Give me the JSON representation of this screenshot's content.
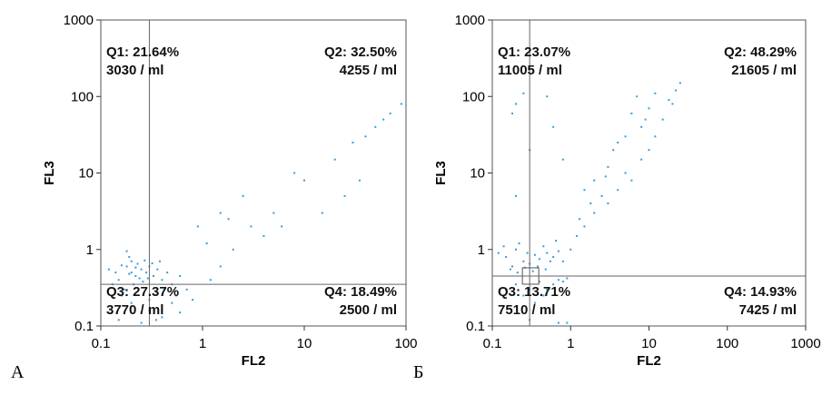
{
  "chart_data": [
    {
      "type": "scatter",
      "panel_label": "А",
      "xlabel": "FL2",
      "ylabel": "FL3",
      "x_scale": "log",
      "y_scale": "log",
      "xlim": [
        0.1,
        100
      ],
      "ylim": [
        0.1,
        1000
      ],
      "x_ticks": [
        "0.1",
        "1",
        "10",
        "100"
      ],
      "y_ticks": [
        "0.1",
        "1",
        "10",
        "100",
        "1000"
      ],
      "gate": {
        "x": 0.3,
        "y": 0.35
      },
      "point_color": "#3a9ad9",
      "quadrants": [
        {
          "id": "Q1",
          "pct": "Q1: 21.64%",
          "count": "3030 / ml"
        },
        {
          "id": "Q2",
          "pct": "Q2: 32.50%",
          "count": "4255 / ml"
        },
        {
          "id": "Q3",
          "pct": "Q3: 27.37%",
          "count": "3770 / ml"
        },
        {
          "id": "Q4",
          "pct": "Q4: 18.49%",
          "count": "2500 / ml"
        }
      ],
      "points": [
        [
          0.2,
          0.5
        ],
        [
          0.18,
          0.6
        ],
        [
          0.22,
          0.45
        ],
        [
          0.25,
          0.55
        ],
        [
          0.15,
          0.4
        ],
        [
          0.2,
          0.7
        ],
        [
          0.28,
          0.5
        ],
        [
          0.3,
          0.6
        ],
        [
          0.17,
          0.3
        ],
        [
          0.21,
          0.35
        ],
        [
          0.24,
          0.42
        ],
        [
          0.19,
          0.8
        ],
        [
          0.26,
          0.38
        ],
        [
          0.14,
          0.5
        ],
        [
          0.33,
          0.45
        ],
        [
          0.36,
          0.55
        ],
        [
          0.4,
          0.4
        ],
        [
          0.45,
          0.5
        ],
        [
          0.5,
          0.35
        ],
        [
          0.6,
          0.45
        ],
        [
          0.16,
          0.25
        ],
        [
          0.2,
          0.2
        ],
        [
          0.25,
          0.15
        ],
        [
          0.3,
          0.22
        ],
        [
          0.35,
          0.28
        ],
        [
          0.42,
          0.3
        ],
        [
          0.55,
          0.25
        ],
        [
          0.7,
          0.3
        ],
        [
          0.8,
          0.22
        ],
        [
          0.18,
          0.95
        ],
        [
          0.23,
          0.65
        ],
        [
          0.27,
          0.72
        ],
        [
          0.22,
          0.58
        ],
        [
          0.19,
          0.48
        ],
        [
          0.29,
          0.42
        ],
        [
          0.32,
          0.66
        ],
        [
          0.38,
          0.7
        ],
        [
          0.16,
          0.62
        ],
        [
          0.13,
          0.35
        ],
        [
          0.12,
          0.55
        ],
        [
          1.2,
          0.4
        ],
        [
          1.5,
          0.6
        ],
        [
          2.0,
          1.0
        ],
        [
          3.0,
          2.0
        ],
        [
          5.0,
          3.0
        ],
        [
          2.5,
          5.0
        ],
        [
          4.0,
          1.5
        ],
        [
          8.0,
          10.0
        ],
        [
          10.0,
          8.0
        ],
        [
          20.0,
          15.0
        ],
        [
          30.0,
          25.0
        ],
        [
          40.0,
          30.0
        ],
        [
          50.0,
          40.0
        ],
        [
          70.0,
          60.0
        ],
        [
          90.0,
          80.0
        ],
        [
          60.0,
          50.0
        ],
        [
          25.0,
          5.0
        ],
        [
          35.0,
          8.0
        ],
        [
          15.0,
          3.0
        ],
        [
          6.0,
          2.0
        ],
        [
          1.5,
          3.0
        ],
        [
          1.8,
          2.5
        ],
        [
          0.9,
          2.0
        ],
        [
          1.1,
          1.2
        ],
        [
          0.15,
          0.12
        ],
        [
          0.25,
          0.11
        ],
        [
          0.4,
          0.13
        ],
        [
          0.6,
          0.15
        ],
        [
          0.2,
          0.18
        ],
        [
          0.3,
          0.16
        ],
        [
          0.5,
          0.2
        ],
        [
          0.35,
          0.12
        ]
      ]
    },
    {
      "type": "scatter",
      "panel_label": "Б",
      "xlabel": "FL2",
      "ylabel": "FL3",
      "x_scale": "log",
      "y_scale": "log",
      "xlim": [
        0.1,
        1000
      ],
      "ylim": [
        0.1,
        1000
      ],
      "x_ticks": [
        "0.1",
        "1",
        "10",
        "100",
        "1000"
      ],
      "y_ticks": [
        "0.1",
        "1",
        "10",
        "100",
        "1000"
      ],
      "gate": {
        "x": 0.3,
        "y": 0.45
      },
      "point_color": "#3a9ad9",
      "quadrants": [
        {
          "id": "Q1",
          "pct": "Q1: 23.07%",
          "count": "11005 / ml"
        },
        {
          "id": "Q2",
          "pct": "Q2: 48.29%",
          "count": "21605 / ml"
        },
        {
          "id": "Q3",
          "pct": "Q3: 13.71%",
          "count": "7510 / ml"
        },
        {
          "id": "Q4",
          "pct": "Q4: 14.93%",
          "count": "7425 / ml"
        }
      ],
      "points": [
        [
          0.15,
          0.8
        ],
        [
          0.2,
          1.0
        ],
        [
          0.25,
          0.7
        ],
        [
          0.18,
          0.6
        ],
        [
          0.22,
          1.2
        ],
        [
          0.28,
          0.9
        ],
        [
          0.3,
          0.65
        ],
        [
          0.35,
          0.85
        ],
        [
          0.4,
          0.75
        ],
        [
          0.45,
          1.1
        ],
        [
          0.5,
          0.9
        ],
        [
          0.55,
          0.7
        ],
        [
          0.6,
          0.8
        ],
        [
          0.7,
          0.95
        ],
        [
          0.8,
          0.7
        ],
        [
          0.65,
          1.3
        ],
        [
          0.12,
          0.9
        ],
        [
          0.14,
          1.1
        ],
        [
          0.17,
          0.55
        ],
        [
          0.21,
          0.5
        ],
        [
          0.26,
          0.58
        ],
        [
          0.33,
          0.52
        ],
        [
          0.38,
          0.6
        ],
        [
          0.48,
          0.55
        ],
        [
          0.2,
          0.35
        ],
        [
          0.3,
          0.3
        ],
        [
          0.4,
          0.38
        ],
        [
          0.5,
          0.3
        ],
        [
          0.6,
          0.35
        ],
        [
          0.25,
          0.25
        ],
        [
          0.35,
          0.2
        ],
        [
          0.15,
          0.3
        ],
        [
          0.45,
          0.25
        ],
        [
          0.7,
          0.4
        ],
        [
          0.8,
          0.38
        ],
        [
          0.9,
          0.42
        ],
        [
          0.55,
          0.15
        ],
        [
          0.3,
          0.12
        ],
        [
          0.7,
          0.11
        ],
        [
          0.9,
          0.11
        ],
        [
          1.0,
          1.0
        ],
        [
          1.2,
          1.5
        ],
        [
          1.5,
          2.0
        ],
        [
          2.0,
          3.0
        ],
        [
          2.5,
          5.0
        ],
        [
          3.0,
          4.0
        ],
        [
          4.0,
          6.0
        ],
        [
          5.0,
          10.0
        ],
        [
          6.0,
          8.0
        ],
        [
          8.0,
          15.0
        ],
        [
          10.0,
          20.0
        ],
        [
          12.0,
          30.0
        ],
        [
          15.0,
          50.0
        ],
        [
          20.0,
          80.0
        ],
        [
          25.0,
          150.0
        ],
        [
          8.0,
          40.0
        ],
        [
          6.0,
          60.0
        ],
        [
          10.0,
          70.0
        ],
        [
          5.0,
          30.0
        ],
        [
          3.0,
          12.0
        ],
        [
          2.0,
          8.0
        ],
        [
          1.5,
          6.0
        ],
        [
          4.0,
          25.0
        ],
        [
          7.0,
          100.0
        ],
        [
          12.0,
          110.0
        ],
        [
          18.0,
          90.0
        ],
        [
          22.0,
          120.0
        ],
        [
          9.0,
          50.0
        ],
        [
          3.5,
          20.0
        ],
        [
          1.8,
          4.0
        ],
        [
          1.3,
          2.5
        ],
        [
          2.8,
          9.0
        ],
        [
          0.2,
          80.0
        ],
        [
          0.25,
          110.0
        ],
        [
          0.18,
          60.0
        ],
        [
          0.5,
          100.0
        ],
        [
          0.6,
          40.0
        ],
        [
          0.3,
          20.0
        ],
        [
          0.8,
          15.0
        ],
        [
          0.2,
          5.0
        ]
      ]
    }
  ]
}
